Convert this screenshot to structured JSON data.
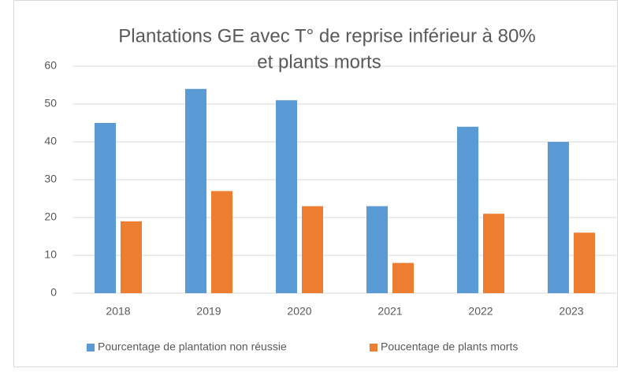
{
  "chart_data": {
    "type": "bar",
    "title": [
      "Plantations GE avec T° de reprise inférieur à 80%",
      "et plants morts"
    ],
    "categories": [
      "2018",
      "2019",
      "2020",
      "2021",
      "2022",
      "2023"
    ],
    "series": [
      {
        "name": "Pourcentage de plantation non réussie",
        "color": "#5b9bd5",
        "values": [
          45,
          54,
          51,
          23,
          44,
          40
        ]
      },
      {
        "name": "Poucentage de plants morts",
        "color": "#ed7d31",
        "values": [
          19,
          27,
          23,
          8,
          21,
          16
        ]
      }
    ],
    "ylim": [
      0,
      60
    ],
    "yticks": [
      0,
      10,
      20,
      30,
      40,
      50,
      60
    ],
    "grid": true,
    "legend": "bottom"
  }
}
